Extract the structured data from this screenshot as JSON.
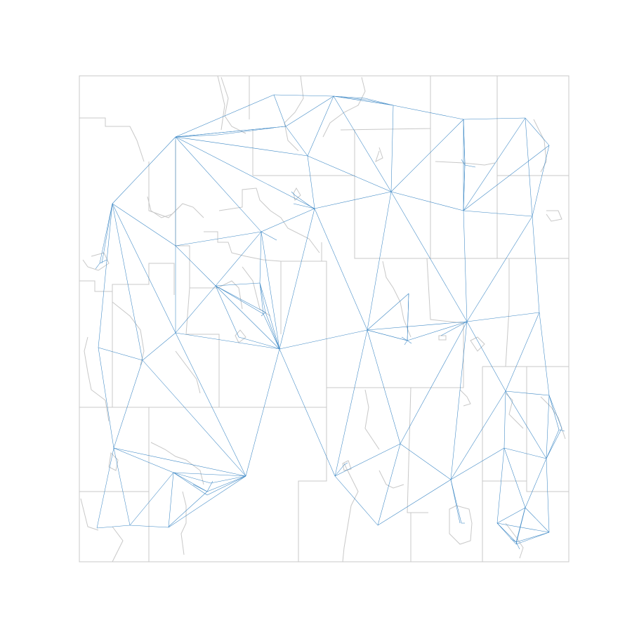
{
  "colors": {
    "background": "#ffffff",
    "boundary_stroke": "#c8c8c8",
    "triangulation_stroke": "#3a86c4"
  },
  "map": {
    "layers": [
      "county-boundaries",
      "delaunay-triangulation"
    ]
  }
}
